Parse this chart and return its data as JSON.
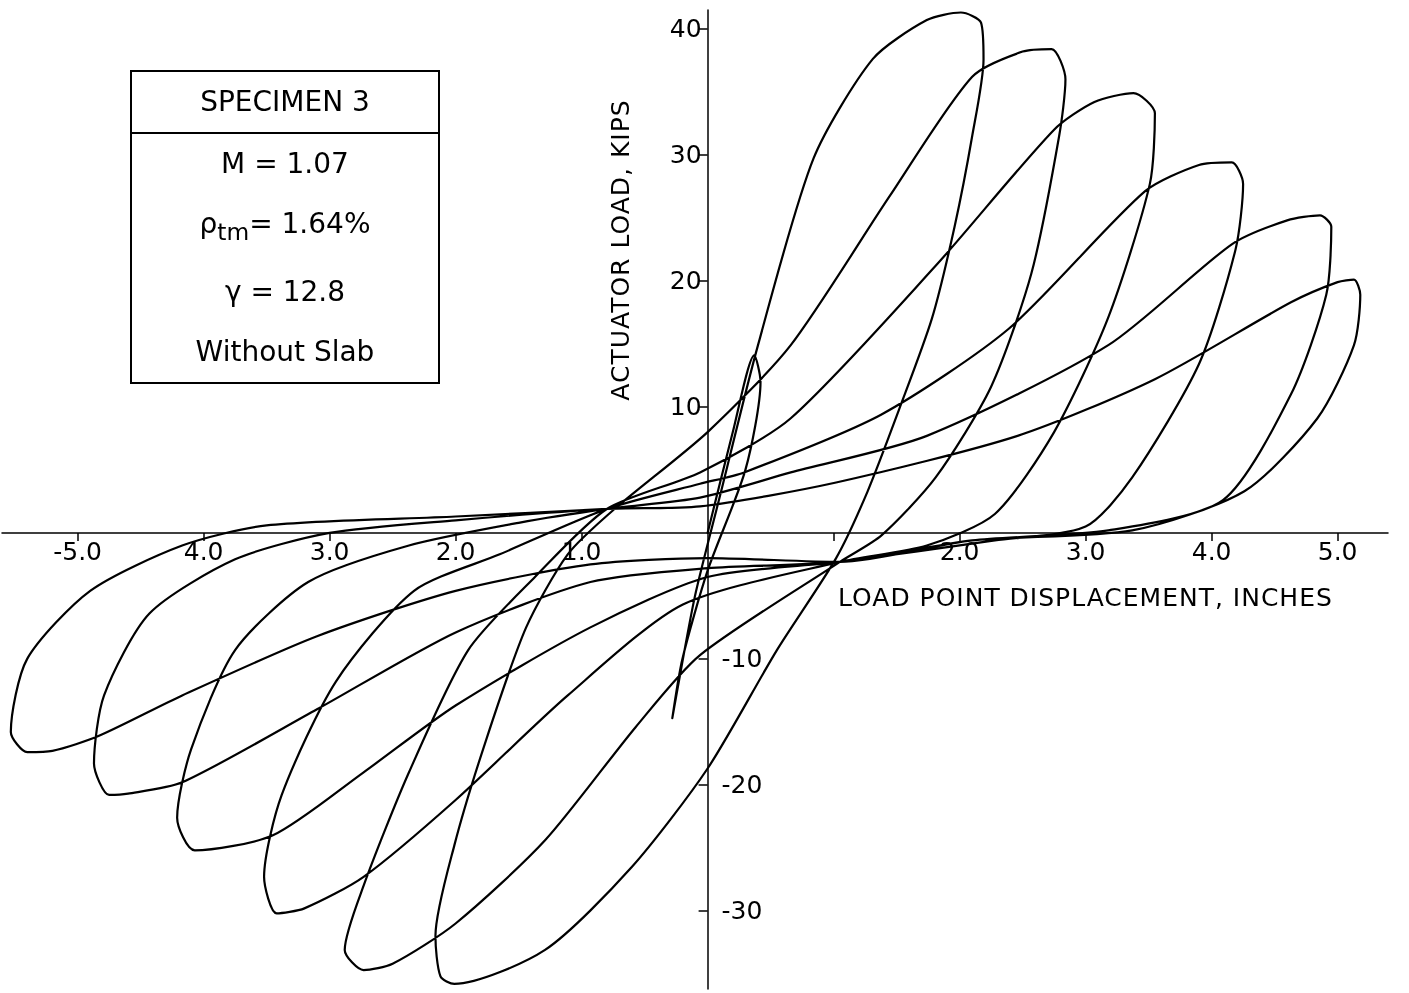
{
  "chart_data": {
    "type": "line",
    "xlabel": "LOAD POINT DISPLACEMENT, INCHES",
    "ylabel": "ACTUATOR LOAD, KIPS",
    "annotations": [
      "SPECIMEN 3",
      "M  = 1.07",
      "ρ$_{tm}$= 1.64%",
      "γ = 12.8",
      "Without Slab"
    ],
    "xlim": [
      -5.6,
      5.4
    ],
    "ylim": [
      -36.2,
      41.5
    ],
    "xticks": [
      {
        "value": -5,
        "label": "-5.0"
      },
      {
        "value": -4,
        "label": "4.0"
      },
      {
        "value": -3,
        "label": "3.0"
      },
      {
        "value": -2,
        "label": "2.0"
      },
      {
        "value": -1,
        "label": "1.0"
      },
      {
        "value": 1,
        "label": null
      },
      {
        "value": 2,
        "label": "2.0"
      },
      {
        "value": 3,
        "label": "3.0"
      },
      {
        "value": 4,
        "label": "4.0"
      },
      {
        "value": 5,
        "label": "5.0"
      }
    ],
    "yticks": [
      40,
      30,
      20,
      10
    ],
    "y2lim": [
      -36.2,
      41.5
    ],
    "y2ticks": [
      -10,
      -20,
      -30
    ],
    "marker": "none",
    "line_style": "solid",
    "grid": false,
    "series": [
      {
        "color": "#000000",
        "x": [
          0,
          0.2,
          0.37,
          0.42,
          0.3,
          0,
          -0.2,
          -0.28,
          -0.25,
          -0.1,
          0.1,
          0.4,
          0.84,
          1.31,
          1.74,
          2.01,
          2.17,
          2.19,
          2.1,
          1.96,
          1.78,
          1.52,
          1.27,
          1.02,
          0.55,
          0,
          -0.6,
          -1.29,
          -2.01,
          -2.12,
          -2.16,
          -2.01,
          -1.76,
          -1.44,
          -1.11,
          -0.75,
          0,
          0.66,
          1.45,
          2.1,
          2.5,
          2.73,
          2.84,
          2.79,
          2.57,
          2.25,
          1.81,
          1.38,
          1.05,
          -0.06,
          -0.57,
          -1.29,
          -2,
          -2.5,
          -2.73,
          -2.88,
          -2.73,
          -2.37,
          -1.9,
          -1.37,
          -0.8,
          -0.06,
          0.66,
          1.81,
          2.75,
          3.07,
          3.38,
          3.55,
          3.51,
          3.18,
          2.75,
          2.28,
          1.74,
          1.05,
          -0.2,
          -1.11,
          -2,
          -2.73,
          -3.2,
          -3.42,
          -3.52,
          -3.38,
          -2.95,
          -2.33,
          -1.65,
          -0.8,
          -0.06,
          0.29,
          1.38,
          2.39,
          3.47,
          3.9,
          4.16,
          4.25,
          4.19,
          3.9,
          3.37,
          3.0,
          2.28,
          1.05,
          0,
          -0.93,
          -2,
          -2.73,
          -3.45,
          -4.07,
          -4.21,
          -4.1,
          -3.75,
          -3.17,
          -2.37,
          -1.5,
          -0.8,
          -0.06,
          0.66,
          1.74,
          3.18,
          4.16,
          4.6,
          4.86,
          4.95,
          4.91,
          4.63,
          4.09,
          3.18,
          2.1,
          1.05,
          0,
          -0.93,
          -2,
          -3.1,
          -4.17,
          -4.6,
          -4.75,
          -4.87,
          -4.79,
          -4.43,
          -3.75,
          -3,
          -2,
          -0.8,
          -0.06,
          1.02,
          2.46,
          3.55,
          4.63,
          5.0,
          5.13,
          5.18,
          5.13,
          4.84,
          4.26,
          3.37,
          2.1,
          1.05,
          0,
          -0.93,
          -2,
          -3.1,
          -4.17,
          -4.83,
          -5.2,
          -5.4,
          -5.53,
          -5.4,
          -4.9,
          -4.17,
          -3.5,
          -2,
          -0.8
        ],
        "values": [
          0,
          8,
          14.1,
          12,
          5,
          -3,
          -10,
          -14.7,
          -13,
          -5,
          3,
          14.9,
          29.7,
          37.6,
          40.7,
          41.3,
          40.5,
          37.6,
          31.5,
          24.3,
          17,
          9.8,
          3.3,
          -2,
          -9.3,
          -18.7,
          -26.5,
          -33.1,
          -35.8,
          -35.2,
          -32,
          -24.8,
          -16.5,
          -7.5,
          -1.7,
          1.8,
          8,
          14.9,
          26.8,
          36.2,
          38.2,
          38.4,
          36,
          31.5,
          20.6,
          11.6,
          4.4,
          -0.2,
          -2.3,
          -9.7,
          -15.4,
          -24.4,
          -31,
          -34.2,
          -34.7,
          -33.1,
          -28,
          -19,
          -9.3,
          -3.5,
          1.9,
          4.8,
          9.1,
          21.2,
          32,
          34.2,
          34.9,
          33.3,
          27.7,
          17.1,
          8,
          1.5,
          -1,
          -2.3,
          -5.7,
          -12.9,
          -21.2,
          -27.3,
          -29.8,
          -30.2,
          -27.3,
          -20.8,
          -11.8,
          -4.6,
          -1.7,
          1.9,
          3.9,
          4.8,
          9.4,
          16.2,
          27.1,
          29.2,
          29.4,
          27.7,
          22.5,
          13.4,
          4.4,
          0.5,
          -0.6,
          -2.3,
          -3.5,
          -7.5,
          -13.7,
          -19,
          -24,
          -25.2,
          -22.6,
          -17.2,
          -9.3,
          -3.9,
          -1,
          0.8,
          1.9,
          2.8,
          4.8,
          7.7,
          14.9,
          22.9,
          24.8,
          25.2,
          24.3,
          18.9,
          11,
          2.6,
          0.2,
          -0.6,
          -2.3,
          -2.8,
          -3.9,
          -7.9,
          -14,
          -19.8,
          -20.7,
          -20.8,
          -18.3,
          -12.9,
          -6.4,
          -2.1,
          0,
          1,
          1.9,
          2.1,
          4,
          7.7,
          12.2,
          18.3,
          19.9,
          20.1,
          18.9,
          14.9,
          9.1,
          3.3,
          0.2,
          -0.6,
          -2.3,
          -2,
          -2.5,
          -4.6,
          -8.2,
          -12.9,
          -16.1,
          -17.3,
          -17.4,
          -15.8,
          -10,
          -4.6,
          -1,
          0.6,
          1.3,
          1.9
        ]
      }
    ]
  }
}
